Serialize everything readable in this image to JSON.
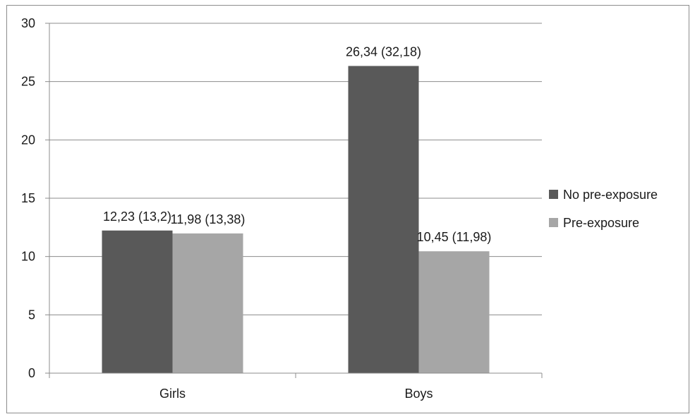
{
  "chart_data": {
    "type": "bar",
    "categories": [
      "Girls",
      "Boys"
    ],
    "series": [
      {
        "name": "No pre-exposure",
        "values": [
          12.23,
          26.34
        ],
        "labels": [
          "12,23 (13,2)",
          "26,34 (32,18)"
        ],
        "color": "#595959"
      },
      {
        "name": "Pre-exposure",
        "values": [
          11.98,
          10.45
        ],
        "labels": [
          "11,98 (13,38)",
          "10,45 (11,98)"
        ],
        "color": "#a6a6a6"
      }
    ],
    "yticks": [
      "0",
      "5",
      "10",
      "15",
      "20",
      "25",
      "30"
    ],
    "ylim": [
      0,
      30
    ],
    "title": "",
    "xlabel": "",
    "ylabel": "",
    "grid": true,
    "legend_position": "right"
  }
}
